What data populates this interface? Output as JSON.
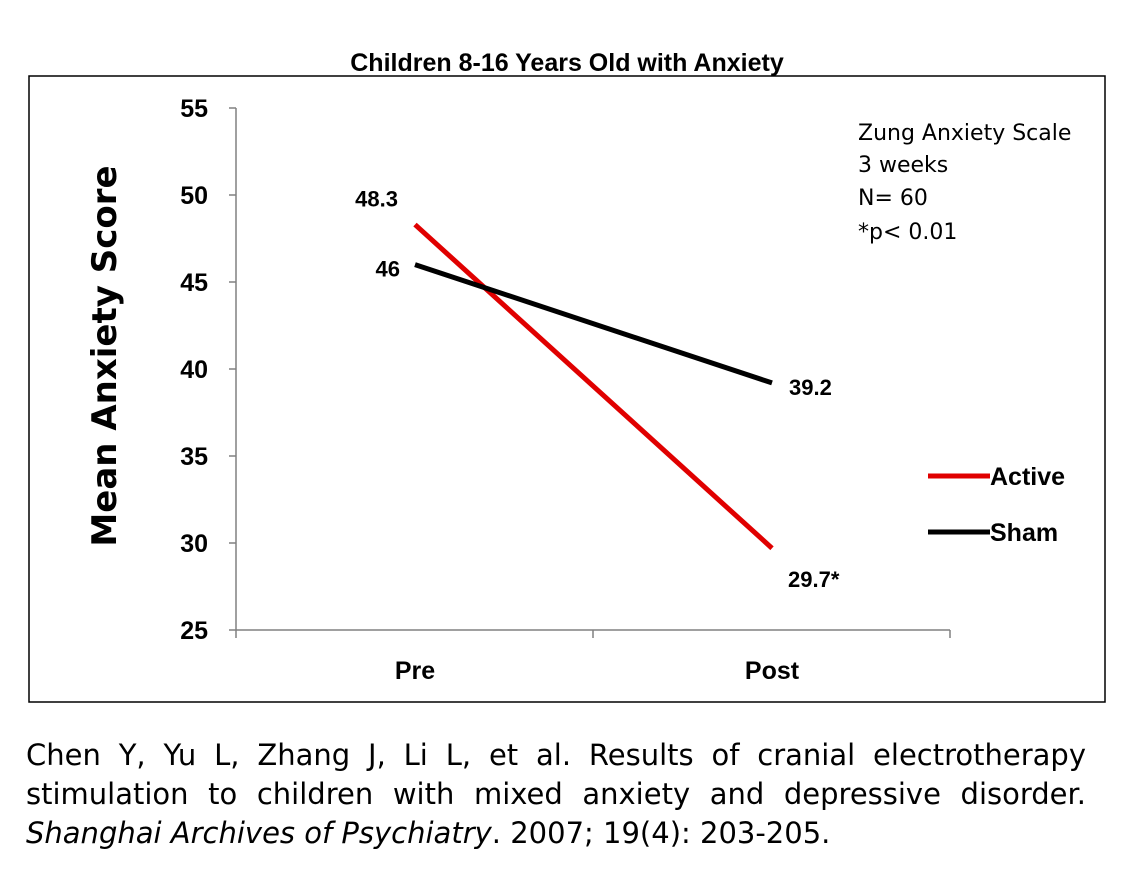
{
  "chart_data": {
    "type": "line",
    "title": "Children 8-16 Years Old with Anxiety",
    "ylabel": "Mean Anxiety Score",
    "xlabel": "",
    "categories": [
      "Pre",
      "Post"
    ],
    "ylim": [
      25,
      55
    ],
    "yticks": [
      "25",
      "30",
      "35",
      "40",
      "45",
      "50",
      "55"
    ],
    "series": [
      {
        "name": "Active",
        "color": "#e00000",
        "values": [
          48.3,
          29.7
        ],
        "labels": [
          "48.3",
          "29.7*"
        ]
      },
      {
        "name": "Sham",
        "color": "#000000",
        "values": [
          46,
          39.2
        ],
        "labels": [
          "46",
          "39.2"
        ]
      }
    ],
    "annotation": [
      "Zung Anxiety Scale",
      "3 weeks",
      "N= 60",
      "*p< 0.01"
    ],
    "legend_position": "right",
    "grid": false
  },
  "citation": {
    "line1": "Chen Y, Yu L, Zhang J, Li L, et al. Results of cranial electrotherapy",
    "line2": "stimulation to children with mixed anxiety and depressive disorder.",
    "journal": "Shanghai Archives of Psychiatry",
    "details": ". 2007; 19(4): 203-205."
  }
}
